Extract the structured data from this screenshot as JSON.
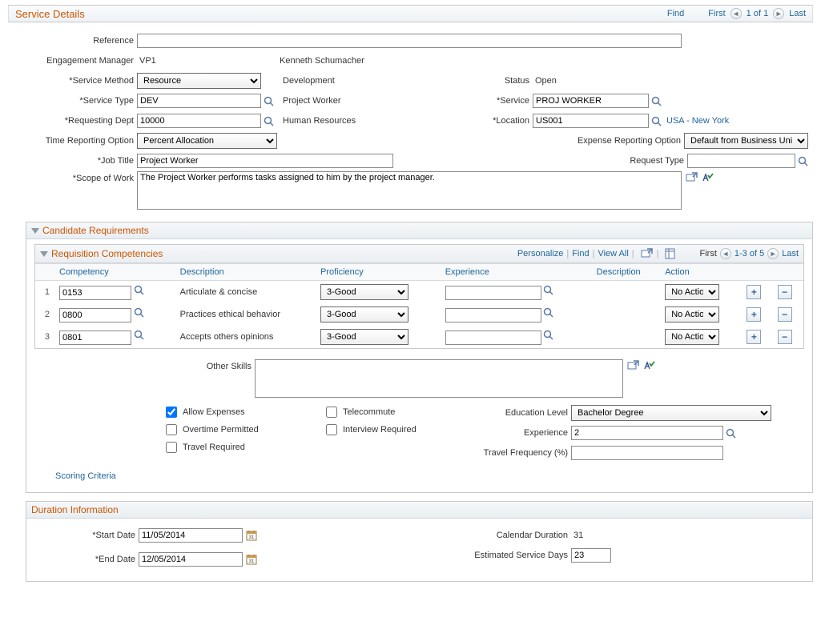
{
  "header": {
    "title": "Service Details",
    "find": "Find",
    "first": "First",
    "page_of": "1 of 1",
    "last": "Last"
  },
  "form": {
    "reference_label": "Reference",
    "reference_value": "",
    "eng_mgr_label": "Engagement Manager",
    "eng_mgr_code": "VP1",
    "eng_mgr_name": "Kenneth Schumacher",
    "service_method_label": "Service Method",
    "service_method_value": "Resource",
    "service_method_desc": "Development",
    "status_label": "Status",
    "status_value": "Open",
    "service_type_label": "Service Type",
    "service_type_value": "DEV",
    "service_type_desc": "Project Worker",
    "service_label": "Service",
    "service_value": "PROJ WORKER",
    "req_dept_label": "Requesting Dept",
    "req_dept_value": "10000",
    "req_dept_desc": "Human Resources",
    "location_label": "Location",
    "location_value": "US001",
    "location_link": "USA - New York",
    "time_opt_label": "Time Reporting Option",
    "time_opt_value": "Percent Allocation",
    "exp_opt_label": "Expense Reporting Option",
    "exp_opt_value": "Default from Business Unit",
    "job_title_label": "Job Title",
    "job_title_value": "Project Worker",
    "req_type_label": "Request Type",
    "req_type_value": "",
    "scope_label": "Scope of Work",
    "scope_value": "The Project Worker performs tasks assigned to him by the project manager."
  },
  "cand_req": {
    "title": "Candidate Requirements"
  },
  "competencies": {
    "title": "Requisition Competencies",
    "personalize": "Personalize",
    "find": "Find",
    "view_all": "View All",
    "first": "First",
    "range": "1-3 of 5",
    "last": "Last",
    "cols": {
      "competency": "Competency",
      "description": "Description",
      "proficiency": "Proficiency",
      "experience": "Experience",
      "description2": "Description",
      "action": "Action"
    },
    "rows": [
      {
        "n": "1",
        "code": "0153",
        "desc": "Articulate & concise",
        "prof": "3-Good",
        "exp": "",
        "desc2": "",
        "action": "No Action"
      },
      {
        "n": "2",
        "code": "0800",
        "desc": "Practices ethical behavior",
        "prof": "3-Good",
        "exp": "",
        "desc2": "",
        "action": "No Action"
      },
      {
        "n": "3",
        "code": "0801",
        "desc": "Accepts others opinions",
        "prof": "3-Good",
        "exp": "",
        "desc2": "",
        "action": "No Action"
      }
    ]
  },
  "skills": {
    "other_skills_label": "Other Skills",
    "other_skills_value": "",
    "allow_expenses": "Allow Expenses",
    "overtime": "Overtime Permitted",
    "travel_req": "Travel Required",
    "telecommute": "Telecommute",
    "interview": "Interview Required",
    "edu_label": "Education Level",
    "edu_value": "Bachelor Degree",
    "exp_label": "Experience",
    "exp_value": "2",
    "travel_freq_label": "Travel Frequency (%)",
    "travel_freq_value": "",
    "scoring": "Scoring Criteria"
  },
  "duration": {
    "title": "Duration Information",
    "start_label": "Start Date",
    "start_value": "11/05/2014",
    "end_label": "End Date",
    "end_value": "12/05/2014",
    "cal_dur_label": "Calendar Duration",
    "cal_dur_value": "31",
    "est_days_label": "Estimated Service Days",
    "est_days_value": "23"
  },
  "colors": {
    "accent": "#cc5500",
    "link": "#21659c"
  }
}
